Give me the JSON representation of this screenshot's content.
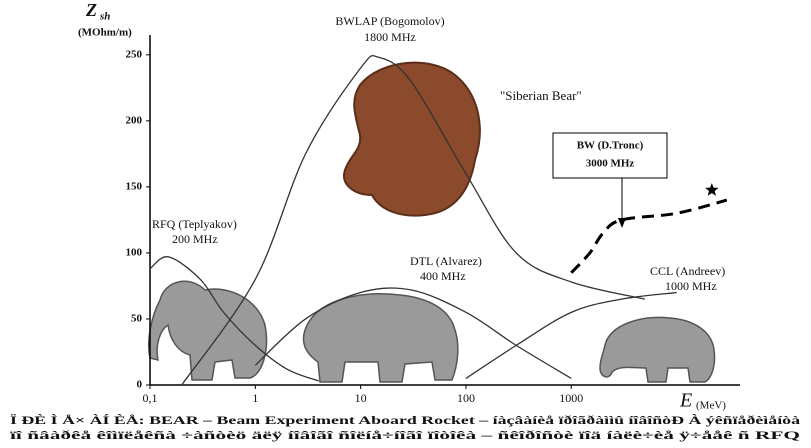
{
  "chart_data": {
    "type": "line",
    "y_label": "Z",
    "y_label_sub": "sh",
    "y_unit": "(MOhm/m)",
    "x_label": "E",
    "x_unit": "(MeV)",
    "log_x": true,
    "xlim": [
      0.1,
      40000
    ],
    "xticks": [
      {
        "value": 0.1,
        "label": "0,1"
      },
      1,
      10,
      100,
      1000
    ],
    "ylim": [
      0,
      265
    ],
    "yticks": [
      0,
      50,
      100,
      150,
      200,
      250
    ],
    "annotations": {
      "bwlap": "BWLAP (Bogomolov)",
      "bwlap_freq": "1800 MHz",
      "bear": "\"Siberian Bear\"",
      "bw": "BW (D.Tronc)",
      "bw_freq": "3000 MHz",
      "rfq": "RFQ (Teplyakov)",
      "rfq_freq": "200 MHz",
      "dtl": "DTL (Alvarez)",
      "dtl_freq": "400 MHz",
      "ccl": "CCL (Andreev)",
      "ccl_freq": "1000 MHz"
    },
    "caption": [
      "Ï ĐÈ Ì Å× ÀÍ ÈÅ: BEAR – Beam Experiment Aboard Rocket – íàçâàíèå ïðîãðàììû íîâîñòÐ À ýêñïåðèìåíòà",
      "ïî ñâàðêå êîìïëåêñà ÷àñòèö äëÿ íîâîãî ñîëíå÷íîãî ïîòîêà – ñêîðîñòè ïîä íàëè÷èå ÿ÷ååê ñ RFQ"
    ],
    "series": [
      {
        "color": "#333333",
        "x": [
          0.1,
          0.15,
          0.3,
          0.5,
          1,
          2,
          4
        ],
        "values": [
          88,
          97,
          80,
          55,
          30,
          12,
          3
        ]
      },
      {
        "color": "#333333",
        "x": [
          0.2,
          1,
          3,
          10,
          15,
          30,
          100,
          300,
          1000,
          5000
        ],
        "values": [
          0,
          80,
          175,
          240,
          248,
          230,
          160,
          100,
          78,
          65
        ]
      },
      {
        "color": "#333333",
        "x": [
          1,
          3,
          10,
          30,
          100,
          300,
          1000
        ],
        "values": [
          15,
          50,
          70,
          72,
          55,
          30,
          5
        ]
      },
      {
        "color": "#333333",
        "x": [
          100,
          300,
          1000,
          3000,
          10000
        ],
        "values": [
          5,
          30,
          55,
          65,
          70
        ]
      },
      {
        "color": "#000000",
        "dashed": true,
        "x": [
          1000,
          1500,
          2000,
          3000,
          10000,
          30000
        ],
        "values": [
          85,
          100,
          115,
          125,
          130,
          140
        ]
      }
    ]
  }
}
